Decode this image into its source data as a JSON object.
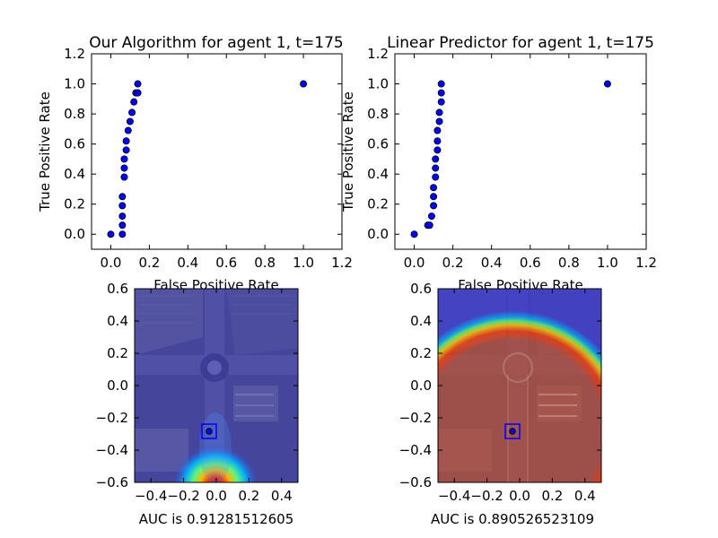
{
  "chart_data": [
    {
      "type": "scatter",
      "title": "Our Algorithm for agent 1, t=175",
      "xlabel": "False Positive Rate",
      "ylabel": "True Positive Rate",
      "xlim": [
        -0.1,
        1.2
      ],
      "ylim": [
        -0.1,
        1.2
      ],
      "xticks": [
        "0.0",
        "0.2",
        "0.4",
        "0.6",
        "0.8",
        "1.0",
        "1.2"
      ],
      "yticks": [
        "0.0",
        "0.2",
        "0.4",
        "0.6",
        "0.8",
        "1.0",
        "1.2"
      ],
      "grid": false,
      "color": "#0000ff",
      "x": [
        0.0,
        0.06,
        0.06,
        0.06,
        0.06,
        0.06,
        0.07,
        0.07,
        0.07,
        0.08,
        0.08,
        0.09,
        0.1,
        0.11,
        0.12,
        0.13,
        0.14,
        0.14,
        0.14,
        1.0
      ],
      "y": [
        0.0,
        0.0,
        0.06,
        0.12,
        0.19,
        0.25,
        0.38,
        0.44,
        0.5,
        0.56,
        0.62,
        0.69,
        0.75,
        0.81,
        0.88,
        0.94,
        0.94,
        1.0,
        0.94,
        1.0
      ]
    },
    {
      "type": "scatter",
      "title": "Linear Predictor for agent 1, t=175",
      "xlabel": "False Positive Rate",
      "ylabel": "True Positive Rate",
      "xlim": [
        -0.1,
        1.2
      ],
      "ylim": [
        -0.1,
        1.2
      ],
      "xticks": [
        "0.0",
        "0.2",
        "0.4",
        "0.6",
        "0.8",
        "1.0",
        "1.2"
      ],
      "yticks": [
        "0.0",
        "0.2",
        "0.4",
        "0.6",
        "0.8",
        "1.0",
        "1.2"
      ],
      "grid": false,
      "color": "#0000ff",
      "x": [
        0.0,
        0.07,
        0.08,
        0.09,
        0.1,
        0.1,
        0.1,
        0.11,
        0.11,
        0.11,
        0.12,
        0.12,
        0.12,
        0.13,
        0.13,
        0.14,
        0.14,
        0.14,
        1.0
      ],
      "y": [
        0.0,
        0.06,
        0.06,
        0.12,
        0.19,
        0.25,
        0.31,
        0.38,
        0.44,
        0.5,
        0.56,
        0.62,
        0.69,
        0.75,
        0.81,
        0.88,
        0.94,
        1.0,
        1.0
      ]
    },
    {
      "type": "heatmap",
      "xlabel": "AUC is 0.91281512605",
      "xlim": [
        -0.5,
        0.5
      ],
      "ylim": [
        -0.6,
        0.6
      ],
      "xticks": [
        "−0.4",
        "−0.2",
        "0.0",
        "0.2",
        "0.4"
      ],
      "yticks": [
        "−0.6",
        "−0.4",
        "−0.2",
        "0.0",
        "0.2",
        "0.4",
        "0.6"
      ],
      "background": "aerial image of road intersection",
      "colormap": "jet",
      "agent_position": [
        -0.04,
        -0.28
      ],
      "hotspot_center": [
        -0.02,
        -0.58
      ],
      "baseline_color": "#3c3cd2"
    },
    {
      "type": "heatmap",
      "xlabel": "AUC is 0.890526523109",
      "xlim": [
        -0.5,
        0.5
      ],
      "ylim": [
        -0.6,
        0.6
      ],
      "xticks": [
        "−0.4",
        "−0.2",
        "0.0",
        "0.2",
        "0.4"
      ],
      "yticks": [
        "−0.6",
        "−0.4",
        "−0.2",
        "0.0",
        "0.2",
        "0.4",
        "0.6"
      ],
      "background": "aerial image of road intersection",
      "colormap": "jet",
      "agent_position": [
        -0.04,
        -0.28
      ],
      "ring_center": [
        -0.04,
        -0.28
      ],
      "ring_radius": 0.52,
      "outside_color": "#3c3cd2",
      "inside_color": "#b43c28"
    }
  ]
}
